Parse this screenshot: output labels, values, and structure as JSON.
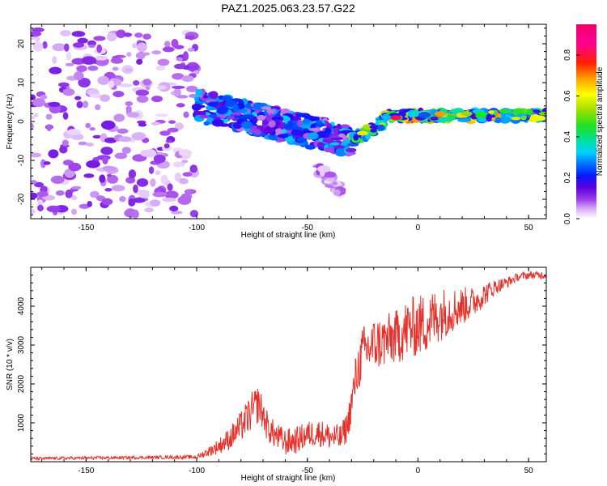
{
  "figure": {
    "title": "PAZ1.2025.063.23.57.G22"
  },
  "colors": {
    "snr_line": "#e8302a",
    "colormap_stops": [
      "#ffffff",
      "#e4c8fa",
      "#a64bea",
      "#5a00e0",
      "#0a16ff",
      "#0070ff",
      "#00d0ff",
      "#00e0a0",
      "#20e020",
      "#a0e000",
      "#ffff00",
      "#ffa000",
      "#ff2000",
      "#ff0090",
      "#f0006a"
    ]
  },
  "chart_data": [
    {
      "type": "heatmap",
      "title": "",
      "xlabel": "Height of straight line (km)",
      "ylabel": "Frequency (Hz)",
      "xlim": [
        -175,
        58
      ],
      "ylim": [
        -25,
        25
      ],
      "xticks": [
        -150,
        -100,
        -50,
        0,
        50
      ],
      "yticks": [
        -20,
        -10,
        0,
        10,
        20
      ],
      "xtick_labels": [
        "-150",
        "-100",
        "-50",
        "0",
        "50"
      ],
      "ytick_labels": [
        "-20",
        "-10",
        "0",
        "10",
        "20"
      ],
      "colorbar": {
        "label": "Normalized spectral amplitude",
        "range": [
          0,
          0.95
        ],
        "ticks": [
          0.0,
          0.2,
          0.4,
          0.6,
          0.8
        ],
        "tick_labels": [
          "0.0",
          "0.2",
          "0.4",
          "0.6",
          "0.8"
        ]
      },
      "regions": [
        {
          "x": [
            -175,
            -100
          ],
          "f_center": 0,
          "f_halfwidth": 24,
          "amplitude": 0.15
        },
        {
          "x": [
            -100,
            -30
          ],
          "f_center_start": 4,
          "f_center_end": -5,
          "f_halfwidth": 4,
          "amplitude": 0.35
        },
        {
          "x": [
            -45,
            -35
          ],
          "f_center_start": -12,
          "f_center_end": -18,
          "f_halfwidth": 1.5,
          "amplitude": 0.12
        },
        {
          "x": [
            -30,
            -15
          ],
          "f_center_start": -5,
          "f_center_end": 0,
          "f_halfwidth": 1.5,
          "amplitude": 0.55
        },
        {
          "x": [
            -15,
            58
          ],
          "f_center": 1.5,
          "f_halfwidth": 1.2,
          "amplitude": 0.65
        }
      ],
      "peaks": [
        {
          "x": -10,
          "f": 1,
          "amplitude": 0.85
        },
        {
          "x": 10,
          "f": 2,
          "amplitude": 0.75
        },
        {
          "x": 22,
          "f": 2,
          "amplitude": 0.6
        },
        {
          "x": -25,
          "f": -3,
          "amplitude": 0.7
        }
      ]
    },
    {
      "type": "line",
      "title": "",
      "xlabel": "Height of straight line (km)",
      "ylabel": "SNR (10 * v/v)",
      "xlim": [
        -175,
        58
      ],
      "ylim": [
        0,
        5000
      ],
      "xticks": [
        -150,
        -100,
        -50,
        0,
        50
      ],
      "yticks": [
        1000,
        2000,
        3000,
        4000
      ],
      "xtick_labels": [
        "-150",
        "-100",
        "-50",
        "0",
        "50"
      ],
      "ytick_labels": [
        "1000",
        "2000",
        "3000",
        "4000"
      ],
      "series": [
        {
          "x": [
            -175,
            -160,
            -140,
            -120,
            -100,
            -95,
            -90,
            -85,
            -80,
            -75,
            -72,
            -70,
            -68,
            -65,
            -60,
            -55,
            -50,
            -45,
            -40,
            -35,
            -32,
            -30,
            -28,
            -25,
            -20,
            -15,
            -10,
            -5,
            0,
            5,
            10,
            15,
            20,
            25,
            30,
            35,
            40,
            45,
            50,
            55,
            58
          ],
          "y": [
            80,
            90,
            100,
            110,
            120,
            250,
            400,
            600,
            900,
            1300,
            1500,
            1200,
            900,
            700,
            500,
            550,
            700,
            750,
            650,
            600,
            900,
            1500,
            2200,
            2800,
            3000,
            3100,
            3200,
            3400,
            3500,
            3600,
            3800,
            3900,
            4000,
            4100,
            4300,
            4500,
            4600,
            4750,
            4800,
            4800,
            4800
          ],
          "noise": [
            40,
            40,
            40,
            40,
            50,
            120,
            200,
            300,
            400,
            500,
            500,
            400,
            400,
            350,
            350,
            350,
            350,
            350,
            350,
            350,
            400,
            500,
            600,
            700,
            700,
            700,
            700,
            800,
            800,
            800,
            700,
            600,
            500,
            400,
            300,
            200,
            150,
            100,
            100,
            100,
            100
          ]
        }
      ]
    }
  ]
}
